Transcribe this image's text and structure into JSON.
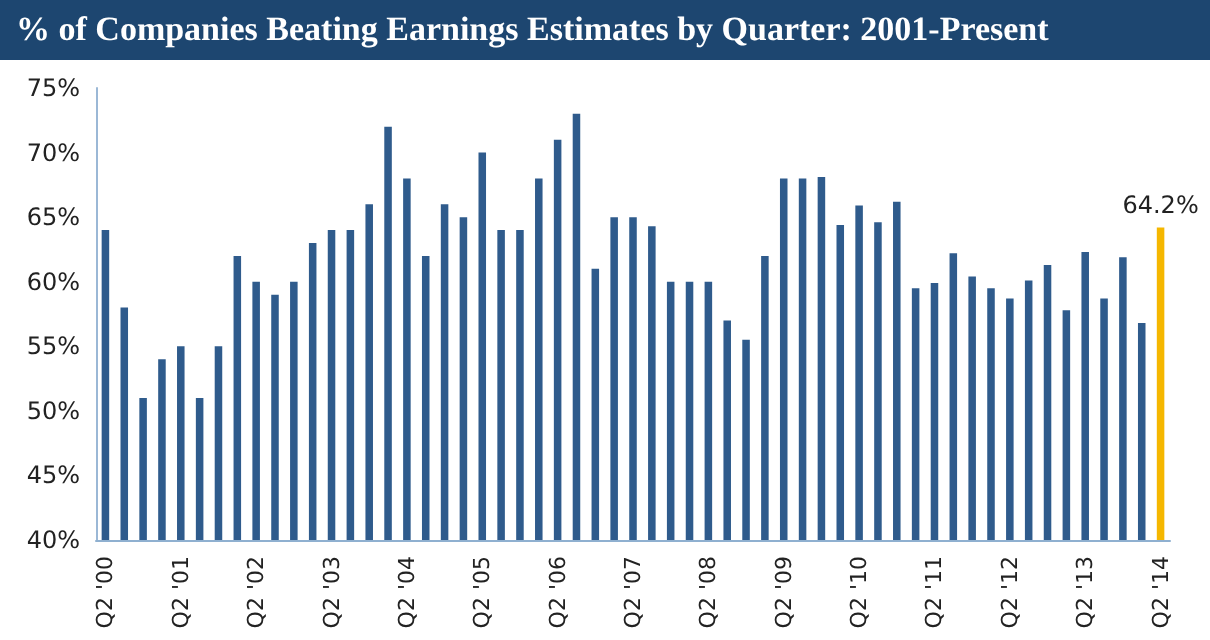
{
  "chart_data": {
    "type": "bar",
    "title": "% of Companies Beating Earnings Estimates by Quarter: 2001-Present",
    "categories": [
      "Q2 '00",
      null,
      null,
      null,
      "Q2 '01",
      null,
      null,
      null,
      "Q2 '02",
      null,
      null,
      null,
      "Q2 '03",
      null,
      null,
      null,
      "Q2 '04",
      null,
      null,
      null,
      "Q2 '05",
      null,
      null,
      null,
      "Q2 '06",
      null,
      null,
      null,
      "Q2 '07",
      null,
      null,
      null,
      "Q2 '08",
      null,
      null,
      null,
      "Q2 '09",
      null,
      null,
      null,
      "Q2 '10",
      null,
      null,
      null,
      "Q2 '11",
      null,
      null,
      null,
      "Q2 '12",
      null,
      null,
      null,
      "Q2 '13",
      null,
      null,
      null,
      "Q2 '14"
    ],
    "values": [
      64,
      58,
      51,
      54,
      55,
      51,
      55,
      62,
      60,
      59,
      60,
      63,
      64,
      64,
      66,
      72,
      68,
      62,
      66,
      65,
      70,
      64,
      64,
      68,
      71,
      73,
      61,
      65,
      65,
      64.3,
      60,
      60,
      60,
      57,
      55.5,
      62,
      68,
      68,
      68.1,
      64.4,
      65.9,
      64.6,
      66.2,
      59.5,
      59.9,
      62.2,
      60.4,
      59.5,
      58.7,
      60.1,
      61.3,
      57.8,
      62.3,
      58.7,
      61.9,
      56.8,
      64.2
    ],
    "colors": [
      "#2f5b8c",
      "#2f5b8c",
      "#2f5b8c",
      "#2f5b8c",
      "#2f5b8c",
      "#2f5b8c",
      "#2f5b8c",
      "#2f5b8c",
      "#2f5b8c",
      "#2f5b8c",
      "#2f5b8c",
      "#2f5b8c",
      "#2f5b8c",
      "#2f5b8c",
      "#2f5b8c",
      "#2f5b8c",
      "#2f5b8c",
      "#2f5b8c",
      "#2f5b8c",
      "#2f5b8c",
      "#2f5b8c",
      "#2f5b8c",
      "#2f5b8c",
      "#2f5b8c",
      "#2f5b8c",
      "#2f5b8c",
      "#2f5b8c",
      "#2f5b8c",
      "#2f5b8c",
      "#2f5b8c",
      "#2f5b8c",
      "#2f5b8c",
      "#2f5b8c",
      "#2f5b8c",
      "#2f5b8c",
      "#2f5b8c",
      "#2f5b8c",
      "#2f5b8c",
      "#2f5b8c",
      "#2f5b8c",
      "#2f5b8c",
      "#2f5b8c",
      "#2f5b8c",
      "#2f5b8c",
      "#2f5b8c",
      "#2f5b8c",
      "#2f5b8c",
      "#2f5b8c",
      "#2f5b8c",
      "#2f5b8c",
      "#2f5b8c",
      "#2f5b8c",
      "#2f5b8c",
      "#2f5b8c",
      "#2f5b8c",
      "#2f5b8c",
      "#f5b700"
    ],
    "value_labels": [
      null,
      null,
      null,
      null,
      null,
      null,
      null,
      null,
      null,
      null,
      null,
      null,
      null,
      null,
      null,
      null,
      null,
      null,
      null,
      null,
      null,
      null,
      null,
      null,
      null,
      null,
      null,
      null,
      null,
      null,
      null,
      null,
      null,
      null,
      null,
      null,
      null,
      null,
      null,
      null,
      null,
      null,
      null,
      null,
      null,
      null,
      null,
      null,
      null,
      null,
      null,
      null,
      null,
      null,
      null,
      null,
      "64.2%"
    ],
    "ylim": [
      40,
      75
    ],
    "yticks": [
      {
        "value": 40,
        "label": "40%"
      },
      {
        "value": 45,
        "label": "45%"
      },
      {
        "value": 50,
        "label": "50%"
      },
      {
        "value": 55,
        "label": "55%"
      },
      {
        "value": 60,
        "label": "60%"
      },
      {
        "value": 65,
        "label": "65%"
      },
      {
        "value": 70,
        "label": "70%"
      },
      {
        "value": 75,
        "label": "75%"
      }
    ],
    "grid": false
  }
}
